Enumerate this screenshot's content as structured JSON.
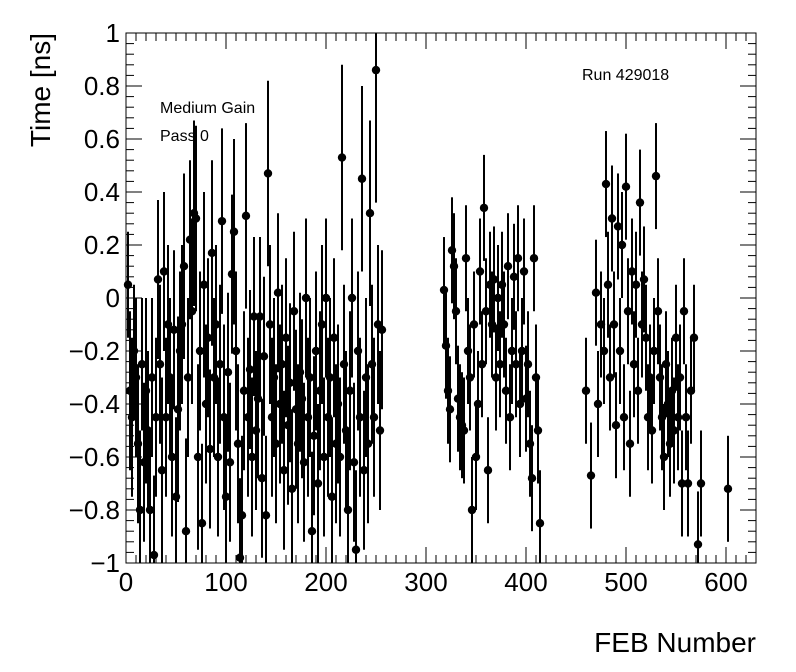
{
  "chart_data": {
    "type": "scatter",
    "title": "",
    "xlabel": "FEB Number",
    "ylabel": "Time [ns]",
    "xlim": [
      0,
      630
    ],
    "ylim": [
      -1,
      1
    ],
    "x_ticks": [
      0,
      100,
      200,
      300,
      400,
      500,
      600
    ],
    "y_ticks": [
      -1,
      -0.8,
      -0.6,
      -0.4,
      -0.2,
      0,
      0.2,
      0.4,
      0.6,
      0.8,
      1
    ],
    "x_tick_labels": [
      "0",
      "100",
      "200",
      "300",
      "400",
      "500",
      "600"
    ],
    "y_tick_labels": [
      "−1",
      "−0.8",
      "−0.6",
      "−0.4",
      "−0.2",
      "0",
      "0.2",
      "0.4",
      "0.6",
      "0.8",
      "1"
    ],
    "grid": false,
    "marker": "filled-circle",
    "error_bars": true,
    "annotations": {
      "gain": "Medium Gain",
      "pass": "Pass 0",
      "run": "Run 429018"
    },
    "points": [
      [
        2,
        0.05,
        0.2
      ],
      [
        4,
        -0.35,
        0.3
      ],
      [
        6,
        -0.45,
        0.3
      ],
      [
        8,
        -0.2,
        0.25
      ],
      [
        10,
        -0.3,
        0.3
      ],
      [
        12,
        -0.55,
        0.3
      ],
      [
        14,
        -0.8,
        0.3
      ],
      [
        16,
        -0.25,
        0.25
      ],
      [
        18,
        -0.62,
        0.3
      ],
      [
        20,
        -0.35,
        0.35
      ],
      [
        22,
        -0.5,
        0.3
      ],
      [
        24,
        -0.8,
        0.3
      ],
      [
        26,
        -0.3,
        0.3
      ],
      [
        28,
        -0.97,
        0.3
      ],
      [
        30,
        -0.45,
        0.3
      ],
      [
        32,
        0.07,
        0.3
      ],
      [
        34,
        -0.25,
        0.3
      ],
      [
        36,
        -0.65,
        0.35
      ],
      [
        38,
        0.1,
        0.3
      ],
      [
        40,
        -0.45,
        0.3
      ],
      [
        42,
        -0.1,
        0.3
      ],
      [
        44,
        -0.3,
        0.3
      ],
      [
        46,
        -0.6,
        0.3
      ],
      [
        48,
        -0.12,
        0.3
      ],
      [
        50,
        -0.75,
        0.3
      ],
      [
        52,
        -0.42,
        0.35
      ],
      [
        54,
        -0.2,
        0.3
      ],
      [
        56,
        -0.1,
        0.3
      ],
      [
        58,
        0.12,
        0.35
      ],
      [
        60,
        -0.88,
        0.35
      ],
      [
        62,
        -0.3,
        0.3
      ],
      [
        64,
        0.22,
        0.3
      ],
      [
        66,
        -0.05,
        0.35
      ],
      [
        68,
        0.32,
        0.35
      ],
      [
        70,
        0.3,
        0.35
      ],
      [
        72,
        -0.6,
        0.35
      ],
      [
        74,
        -0.2,
        0.3
      ],
      [
        76,
        -0.85,
        0.3
      ],
      [
        78,
        0.05,
        0.35
      ],
      [
        80,
        -0.4,
        0.3
      ],
      [
        82,
        -0.15,
        0.3
      ],
      [
        84,
        -0.57,
        0.3
      ],
      [
        86,
        0.17,
        0.35
      ],
      [
        88,
        -0.3,
        0.3
      ],
      [
        90,
        -0.1,
        0.3
      ],
      [
        92,
        -0.6,
        0.3
      ],
      [
        94,
        -0.25,
        0.3
      ],
      [
        96,
        0.29,
        0.35
      ],
      [
        98,
        -0.45,
        0.35
      ],
      [
        100,
        -0.75,
        0.3
      ],
      [
        102,
        -0.28,
        0.3
      ],
      [
        104,
        -0.62,
        0.3
      ],
      [
        106,
        0.09,
        0.3
      ],
      [
        108,
        0.25,
        0.35
      ],
      [
        110,
        -0.2,
        0.3
      ],
      [
        112,
        -0.55,
        0.3
      ],
      [
        114,
        -0.98,
        0.3
      ],
      [
        116,
        -0.82,
        0.3
      ],
      [
        118,
        -0.35,
        0.3
      ],
      [
        120,
        0.31,
        0.35
      ],
      [
        122,
        -0.45,
        0.3
      ],
      [
        124,
        -0.27,
        0.3
      ],
      [
        126,
        -0.6,
        0.3
      ],
      [
        128,
        -0.07,
        0.3
      ],
      [
        130,
        -0.5,
        0.3
      ],
      [
        132,
        -0.38,
        0.3
      ],
      [
        134,
        -0.07,
        0.3
      ],
      [
        136,
        -0.68,
        0.3
      ],
      [
        138,
        -0.22,
        0.3
      ],
      [
        140,
        -0.82,
        0.3
      ],
      [
        142,
        0.47,
        0.35
      ],
      [
        144,
        -0.1,
        0.3
      ],
      [
        146,
        -0.45,
        0.3
      ],
      [
        148,
        -0.3,
        0.3
      ],
      [
        150,
        -0.55,
        0.3
      ],
      [
        152,
        0.02,
        0.3
      ],
      [
        154,
        -0.4,
        0.3
      ],
      [
        156,
        -0.25,
        0.3
      ],
      [
        158,
        -0.65,
        0.3
      ],
      [
        160,
        -0.15,
        0.3
      ],
      [
        162,
        -0.48,
        0.3
      ],
      [
        164,
        -0.32,
        0.3
      ],
      [
        166,
        -0.72,
        0.3
      ],
      [
        168,
        -0.05,
        0.3
      ],
      [
        170,
        -0.42,
        0.3
      ],
      [
        172,
        -0.55,
        0.3
      ],
      [
        174,
        -0.28,
        0.3
      ],
      [
        176,
        -0.38,
        0.3
      ],
      [
        178,
        -0.62,
        0.3
      ],
      [
        180,
        0.0,
        0.3
      ],
      [
        182,
        -0.45,
        0.3
      ],
      [
        184,
        -0.3,
        0.3
      ],
      [
        186,
        -0.88,
        0.3
      ],
      [
        188,
        -0.52,
        0.3
      ],
      [
        190,
        -0.2,
        0.3
      ],
      [
        192,
        -0.7,
        0.3
      ],
      [
        194,
        -0.35,
        0.3
      ],
      [
        196,
        -0.1,
        0.3
      ],
      [
        198,
        -0.6,
        0.3
      ],
      [
        200,
        0.0,
        0.3
      ],
      [
        202,
        -0.45,
        0.3
      ],
      [
        204,
        -0.3,
        0.3
      ],
      [
        206,
        -0.75,
        0.3
      ],
      [
        208,
        -0.15,
        0.3
      ],
      [
        210,
        -0.55,
        0.3
      ],
      [
        212,
        -0.4,
        0.3
      ],
      [
        214,
        -0.6,
        0.3
      ],
      [
        216,
        0.53,
        0.35
      ],
      [
        218,
        -0.25,
        0.3
      ],
      [
        220,
        -0.5,
        0.3
      ],
      [
        222,
        -0.8,
        0.3
      ],
      [
        224,
        -0.35,
        0.3
      ],
      [
        226,
        0.0,
        0.3
      ],
      [
        228,
        -0.62,
        0.3
      ],
      [
        230,
        -0.95,
        0.3
      ],
      [
        232,
        -0.2,
        0.3
      ],
      [
        234,
        -0.45,
        0.3
      ],
      [
        236,
        0.45,
        0.35
      ],
      [
        238,
        -0.65,
        0.3
      ],
      [
        240,
        -0.3,
        0.3
      ],
      [
        242,
        -0.55,
        0.3
      ],
      [
        244,
        0.32,
        0.35
      ],
      [
        246,
        -0.25,
        0.3
      ],
      [
        248,
        -0.45,
        0.3
      ],
      [
        250,
        0.86,
        0.5
      ],
      [
        252,
        -0.1,
        0.3
      ],
      [
        254,
        -0.5,
        0.3
      ],
      [
        256,
        -0.12,
        0.3
      ],
      [
        318,
        0.03,
        0.2
      ],
      [
        320,
        -0.18,
        0.2
      ],
      [
        322,
        -0.35,
        0.2
      ],
      [
        324,
        -0.42,
        0.2
      ],
      [
        326,
        0.18,
        0.2
      ],
      [
        328,
        0.12,
        0.2
      ],
      [
        330,
        -0.05,
        0.2
      ],
      [
        332,
        -0.38,
        0.2
      ],
      [
        334,
        -0.45,
        0.2
      ],
      [
        336,
        -0.48,
        0.2
      ],
      [
        338,
        -0.5,
        0.2
      ],
      [
        340,
        0.15,
        0.2
      ],
      [
        342,
        -0.2,
        0.2
      ],
      [
        344,
        -0.3,
        0.2
      ],
      [
        346,
        -0.8,
        0.2
      ],
      [
        348,
        -0.1,
        0.2
      ],
      [
        350,
        -0.6,
        0.2
      ],
      [
        352,
        -0.4,
        0.2
      ],
      [
        354,
        0.1,
        0.2
      ],
      [
        356,
        -0.25,
        0.2
      ],
      [
        358,
        0.34,
        0.2
      ],
      [
        360,
        -0.05,
        0.2
      ],
      [
        362,
        -0.65,
        0.2
      ],
      [
        364,
        0.05,
        0.2
      ],
      [
        366,
        -0.1,
        0.2
      ],
      [
        368,
        0.07,
        0.2
      ],
      [
        370,
        -0.3,
        0.2
      ],
      [
        372,
        0.0,
        0.2
      ],
      [
        374,
        -0.25,
        0.2
      ],
      [
        376,
        0.05,
        0.2
      ],
      [
        378,
        -0.1,
        0.2
      ],
      [
        380,
        -0.35,
        0.2
      ],
      [
        382,
        0.12,
        0.2
      ],
      [
        384,
        -0.45,
        0.2
      ],
      [
        386,
        -0.2,
        0.2
      ],
      [
        388,
        0.08,
        0.2
      ],
      [
        390,
        -0.25,
        0.2
      ],
      [
        392,
        0.15,
        0.2
      ],
      [
        394,
        -0.4,
        0.2
      ],
      [
        396,
        -0.2,
        0.2
      ],
      [
        398,
        0.1,
        0.2
      ],
      [
        400,
        -0.38,
        0.2
      ],
      [
        402,
        -0.25,
        0.2
      ],
      [
        404,
        -0.55,
        0.2
      ],
      [
        406,
        -0.68,
        0.2
      ],
      [
        408,
        0.15,
        0.2
      ],
      [
        410,
        -0.3,
        0.2
      ],
      [
        412,
        -0.5,
        0.2
      ],
      [
        414,
        -0.85,
        0.2
      ],
      [
        460,
        -0.35,
        0.2
      ],
      [
        465,
        -0.67,
        0.2
      ],
      [
        470,
        0.02,
        0.2
      ],
      [
        472,
        -0.4,
        0.2
      ],
      [
        475,
        -0.1,
        0.2
      ],
      [
        478,
        -0.2,
        0.2
      ],
      [
        480,
        0.43,
        0.2
      ],
      [
        482,
        0.05,
        0.2
      ],
      [
        484,
        -0.3,
        0.2
      ],
      [
        486,
        0.3,
        0.2
      ],
      [
        488,
        -0.1,
        0.2
      ],
      [
        490,
        -0.48,
        0.2
      ],
      [
        492,
        0.27,
        0.2
      ],
      [
        494,
        -0.2,
        0.2
      ],
      [
        496,
        0.2,
        0.2
      ],
      [
        498,
        -0.45,
        0.2
      ],
      [
        500,
        0.42,
        0.2
      ],
      [
        502,
        -0.05,
        0.2
      ],
      [
        504,
        -0.55,
        0.2
      ],
      [
        506,
        0.1,
        0.2
      ],
      [
        508,
        -0.25,
        0.2
      ],
      [
        510,
        0.05,
        0.2
      ],
      [
        512,
        -0.35,
        0.2
      ],
      [
        514,
        0.36,
        0.2
      ],
      [
        516,
        -0.1,
        0.2
      ],
      [
        518,
        0.07,
        0.2
      ],
      [
        520,
        -0.15,
        0.2
      ],
      [
        522,
        -0.45,
        0.2
      ],
      [
        524,
        -0.3,
        0.2
      ],
      [
        526,
        -0.5,
        0.2
      ],
      [
        528,
        -0.2,
        0.2
      ],
      [
        530,
        0.46,
        0.2
      ],
      [
        532,
        -0.05,
        0.2
      ],
      [
        534,
        -0.3,
        0.2
      ],
      [
        536,
        -0.45,
        0.2
      ],
      [
        538,
        -0.6,
        0.2
      ],
      [
        540,
        -0.25,
        0.2
      ],
      [
        542,
        -0.4,
        0.2
      ],
      [
        544,
        -0.55,
        0.2
      ],
      [
        546,
        -0.35,
        0.2
      ],
      [
        548,
        -0.5,
        0.2
      ],
      [
        550,
        -0.15,
        0.2
      ],
      [
        552,
        -0.45,
        0.2
      ],
      [
        554,
        -0.3,
        0.2
      ],
      [
        556,
        -0.7,
        0.2
      ],
      [
        558,
        -0.05,
        0.2
      ],
      [
        560,
        -0.45,
        0.2
      ],
      [
        562,
        -0.7,
        0.2
      ],
      [
        565,
        -0.35,
        0.2
      ],
      [
        568,
        -0.15,
        0.2
      ],
      [
        572,
        -0.93,
        0.2
      ],
      [
        575,
        -0.7,
        0.2
      ],
      [
        602,
        -0.72,
        0.2
      ]
    ]
  }
}
